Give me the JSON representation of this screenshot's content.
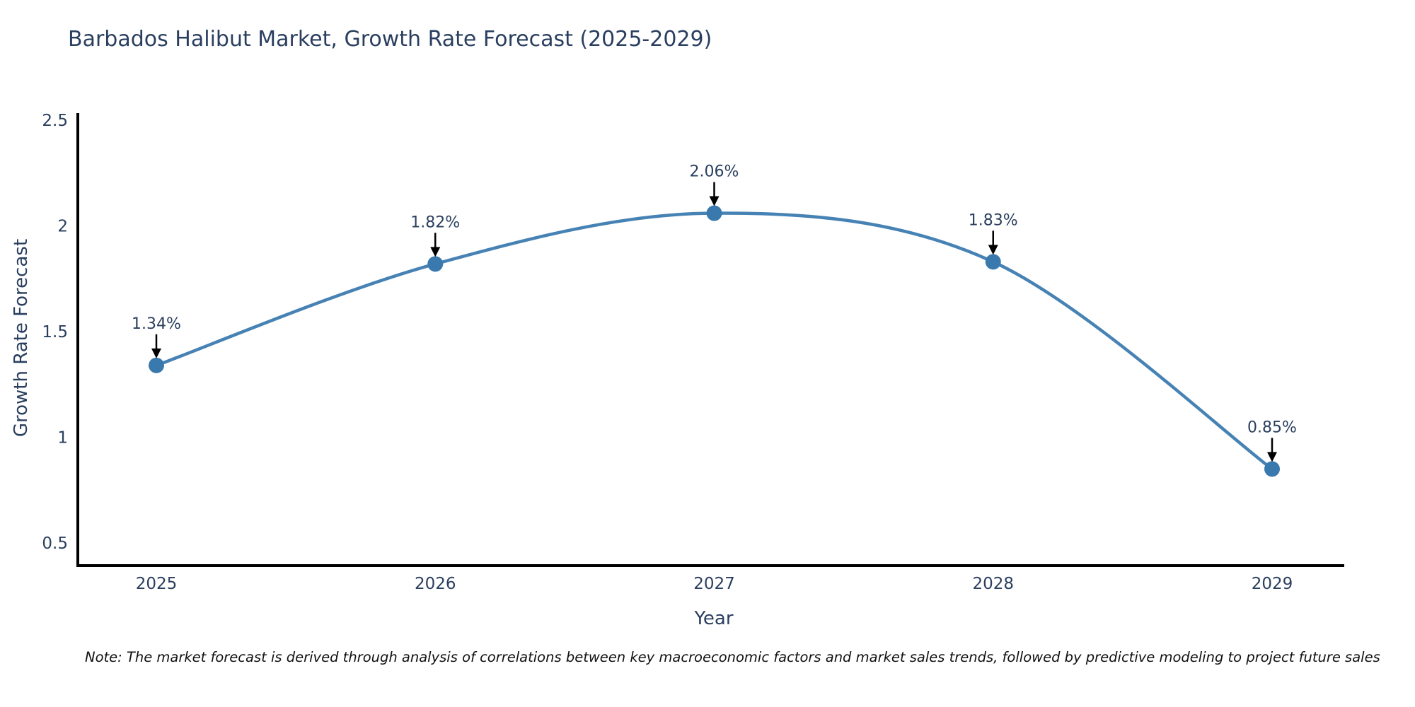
{
  "chart_data": {
    "type": "line",
    "title": "Barbados Halibut Market, Growth Rate Forecast (2025-2029)",
    "xlabel": "Year",
    "ylabel": "Growth Rate Forecast",
    "categories": [
      2025,
      2026,
      2027,
      2028,
      2029
    ],
    "values": [
      1.34,
      1.82,
      2.06,
      1.83,
      0.85
    ],
    "point_labels": [
      "1.34%",
      "1.82%",
      "2.06%",
      "1.83%",
      "0.85%"
    ],
    "yticks": [
      "0.5",
      "1",
      "1.5",
      "2",
      "2.5"
    ],
    "ylim": [
      0.38,
      2.55
    ],
    "grid": false,
    "legend_position": "none",
    "line_color": "#4682b4",
    "marker_color": "#3a79ae",
    "axis_color": "#000000",
    "tick_label_color": "#2a3f5f",
    "annotation_color": "#2a3f5f",
    "arrow_color": "#000000"
  },
  "note": {
    "text": "Note: The market forecast is derived through analysis of correlations between key macroeconomic factors and market sales trends, followed by predictive modeling to project future sales"
  }
}
